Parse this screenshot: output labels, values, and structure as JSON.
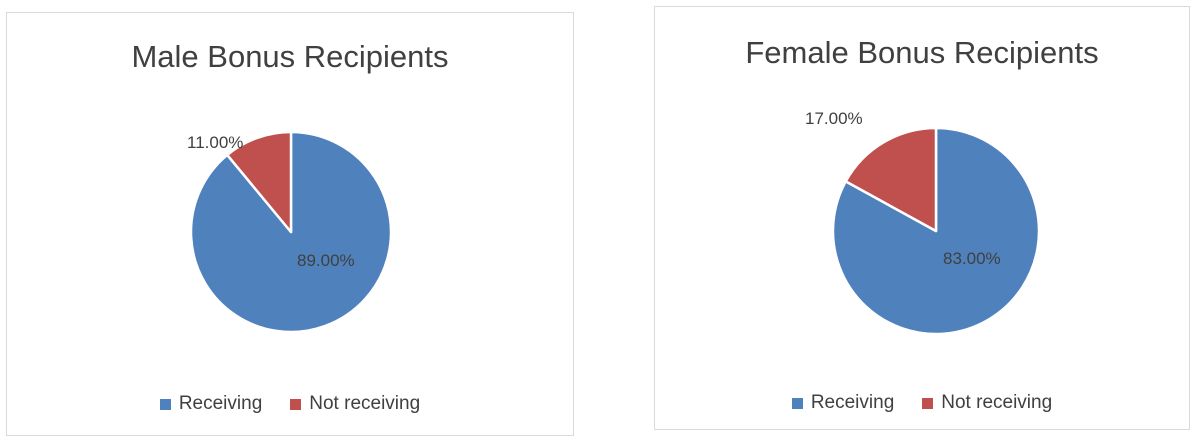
{
  "chart_data": [
    {
      "type": "pie",
      "title": "Male Bonus Recipients",
      "categories": [
        "Receiving",
        "Not receiving"
      ],
      "values": [
        89.0,
        11.0
      ],
      "data_labels": [
        "89.00%",
        "11.00%"
      ],
      "colors": [
        "#4f81bd",
        "#c0504d"
      ],
      "legend_position": "bottom"
    },
    {
      "type": "pie",
      "title": "Female Bonus Recipients",
      "categories": [
        "Receiving",
        "Not receiving"
      ],
      "values": [
        83.0,
        17.0
      ],
      "data_labels": [
        "83.00%",
        "17.00%"
      ],
      "colors": [
        "#4f81bd",
        "#c0504d"
      ],
      "legend_position": "bottom"
    }
  ]
}
